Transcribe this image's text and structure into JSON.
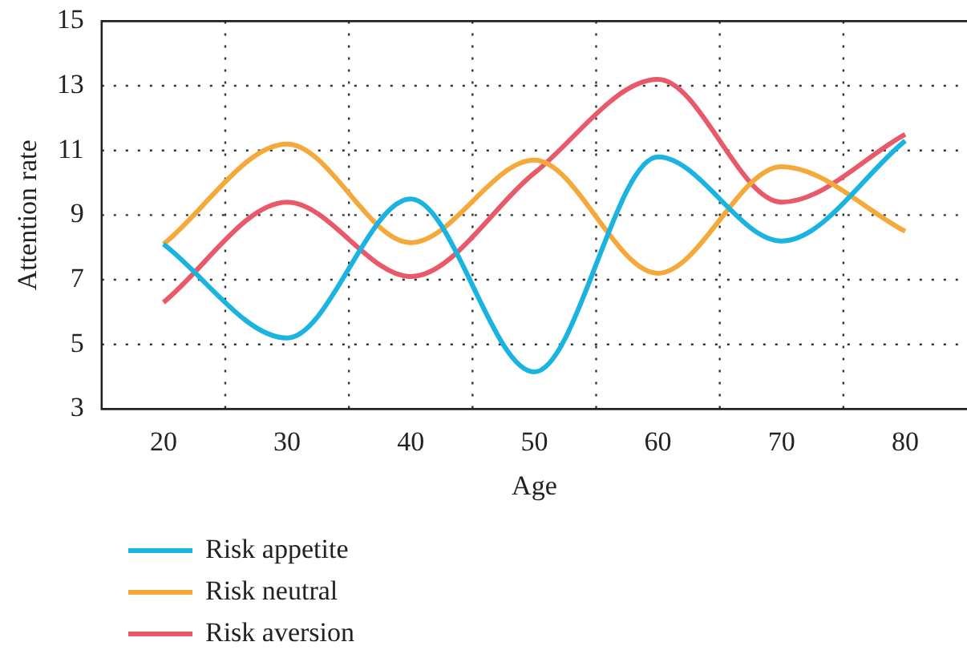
{
  "chart_data": {
    "type": "line",
    "xlabel": "Age",
    "ylabel": "Attention rate",
    "x": [
      20,
      30,
      40,
      50,
      60,
      70,
      80
    ],
    "series": [
      {
        "name": "Risk appetite",
        "color": "#1bb3e0",
        "values": [
          8.1,
          5.2,
          9.5,
          4.15,
          10.8,
          8.2,
          11.3
        ]
      },
      {
        "name": "Risk neutral",
        "color": "#f5a93a",
        "values": [
          8.1,
          11.2,
          8.15,
          10.7,
          7.2,
          10.5,
          8.5
        ]
      },
      {
        "name": "Risk aversion",
        "color": "#e8596a",
        "values": [
          6.3,
          9.4,
          7.1,
          10.3,
          13.2,
          9.4,
          11.5
        ]
      }
    ],
    "xlim": [
      15,
      85
    ],
    "xticks": [
      20,
      30,
      40,
      50,
      60,
      70,
      80
    ],
    "ylim": [
      3,
      15
    ],
    "yticks": [
      3,
      5,
      7,
      9,
      11,
      13,
      15
    ],
    "grid": true,
    "legend": "bottom left",
    "marker": "none",
    "line_style": "solid"
  }
}
